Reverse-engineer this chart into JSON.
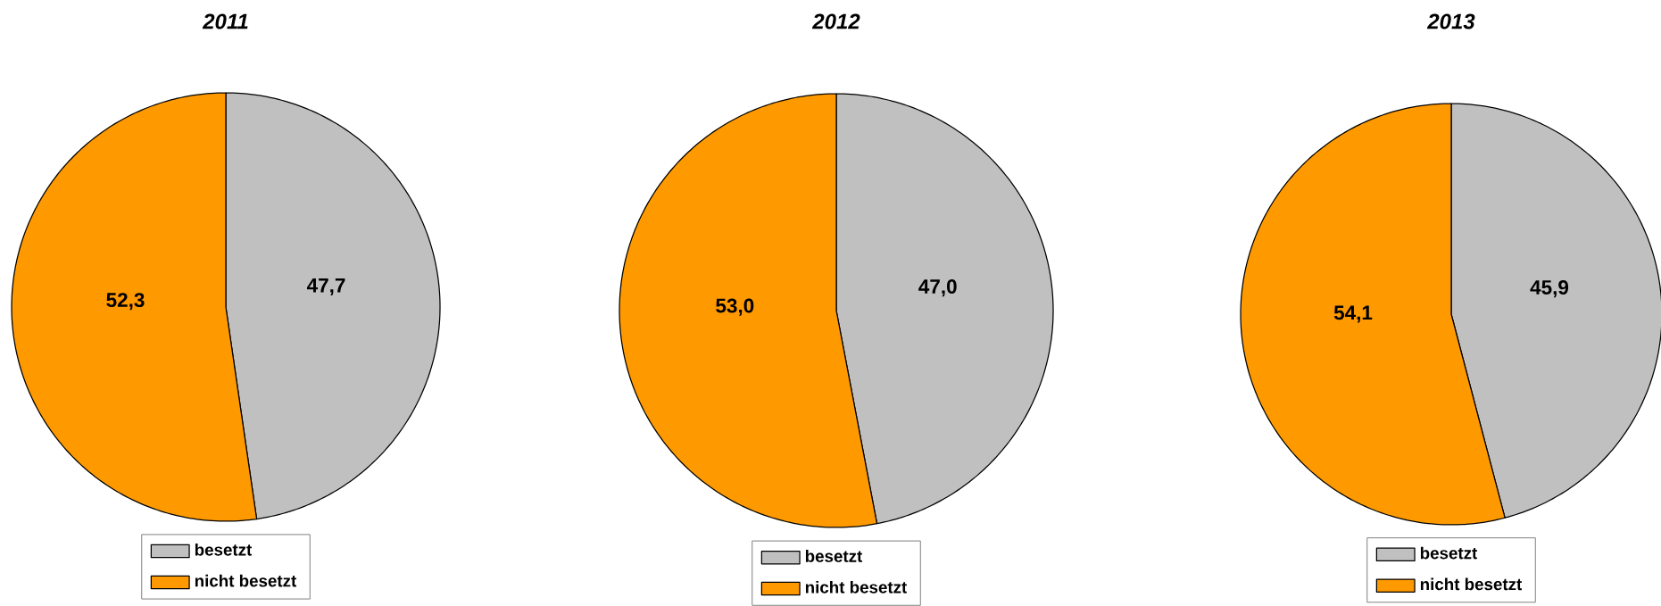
{
  "chart_data": [
    {
      "type": "pie",
      "title": "2011",
      "categories": [
        "besetzt",
        "nicht besetzt"
      ],
      "values": [
        47.7,
        52.3
      ],
      "colors": [
        "#c0c0c0",
        "#ff9900"
      ],
      "value_labels": [
        "47,7",
        "52,3"
      ],
      "legend": "bottom"
    },
    {
      "type": "pie",
      "title": "2012",
      "categories": [
        "besetzt",
        "nicht besetzt"
      ],
      "values": [
        47.0,
        53.0
      ],
      "colors": [
        "#c0c0c0",
        "#ff9900"
      ],
      "value_labels": [
        "47,0",
        "53,0"
      ],
      "legend": "bottom"
    },
    {
      "type": "pie",
      "title": "2013",
      "categories": [
        "besetzt",
        "nicht besetzt"
      ],
      "values": [
        45.9,
        54.1
      ],
      "colors": [
        "#c0c0c0",
        "#ff9900"
      ],
      "value_labels": [
        "45,9",
        "54,1"
      ],
      "legend": "bottom"
    }
  ]
}
